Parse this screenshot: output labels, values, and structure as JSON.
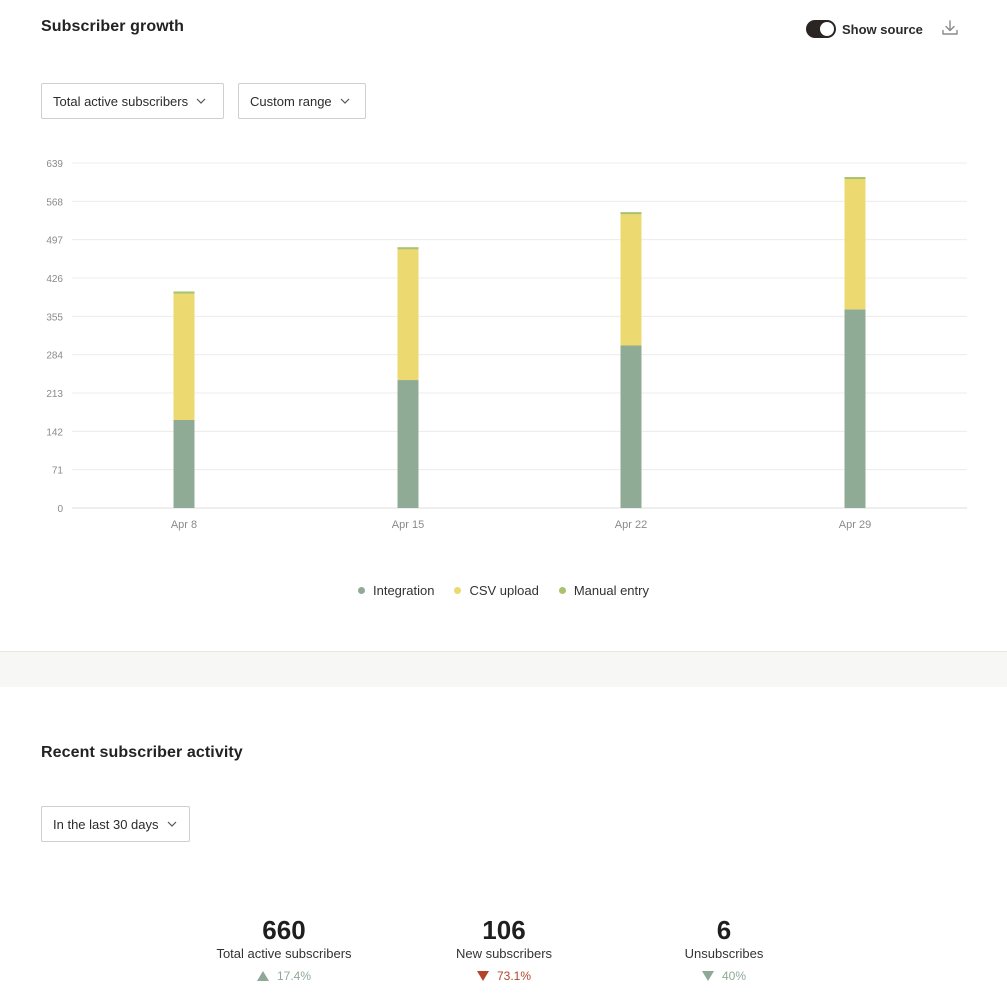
{
  "growth": {
    "title": "Subscriber growth",
    "toggle_label": "Show source",
    "toggle_on": true,
    "download_icon": "download-icon",
    "metric_dropdown": "Total active subscribers",
    "range_dropdown": "Custom range"
  },
  "chart_data": {
    "type": "bar",
    "stacked": true,
    "categories": [
      "Apr 8",
      "Apr 15",
      "Apr 22",
      "Apr 29"
    ],
    "series": [
      {
        "name": "Integration",
        "color": "#8fab95",
        "values": [
          163,
          237,
          301,
          368
        ]
      },
      {
        "name": "CSV upload",
        "color": "#ecd96f",
        "values": [
          234,
          242,
          243,
          241
        ]
      },
      {
        "name": "Manual entry",
        "color": "#a9c26b",
        "values": [
          4,
          4,
          4,
          4
        ]
      }
    ],
    "yticks": [
      "0",
      "71",
      "142",
      "213",
      "284",
      "355",
      "426",
      "497",
      "568",
      "639"
    ],
    "ylim": [
      0,
      639
    ],
    "grid": true,
    "legend": "bottom-center"
  },
  "legend": [
    {
      "label": "Integration",
      "color": "#8fab95"
    },
    {
      "label": "CSV upload",
      "color": "#ecd96f"
    },
    {
      "label": "Manual entry",
      "color": "#a9c26b"
    }
  ],
  "activity": {
    "title": "Recent subscriber activity",
    "range_dropdown": "In the last 30 days",
    "stats": [
      {
        "value": "660",
        "label": "Total active subscribers",
        "change": "17.4%",
        "direction": "up",
        "color": "#8fa996"
      },
      {
        "value": "106",
        "label": "New subscribers",
        "change": "73.1%",
        "direction": "down",
        "color": "#b5432c"
      },
      {
        "value": "6",
        "label": "Unsubscribes",
        "change": "40%",
        "direction": "down",
        "color": "#8fa996"
      }
    ]
  }
}
